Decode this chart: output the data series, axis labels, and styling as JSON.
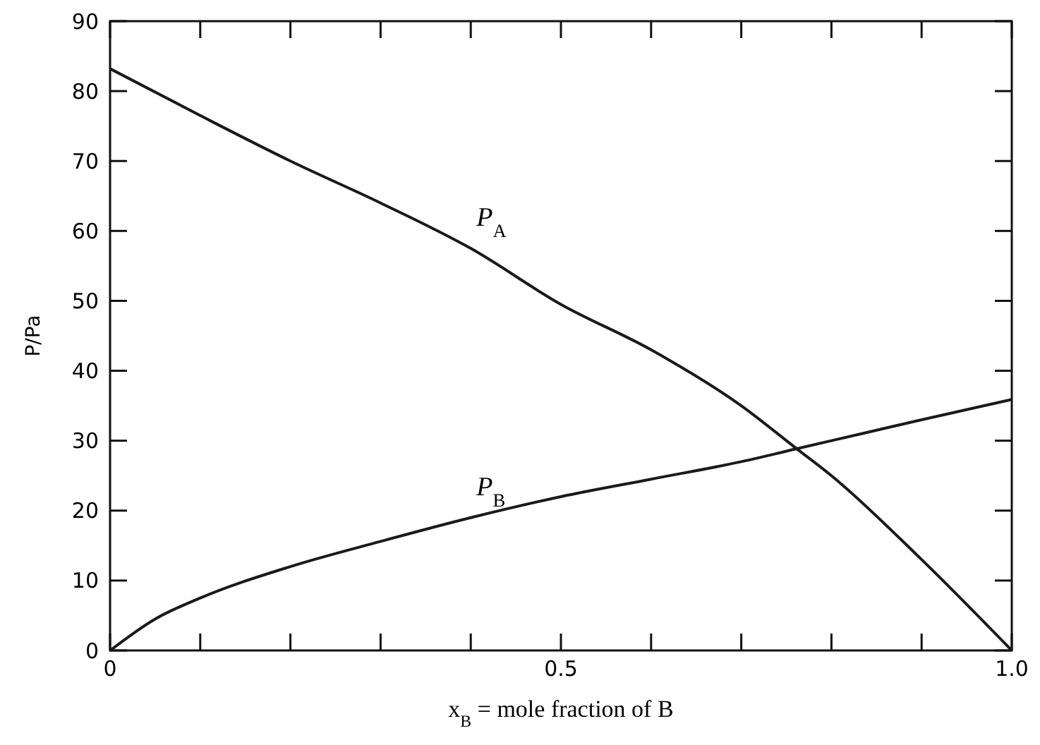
{
  "chart_data": {
    "type": "line",
    "xlabel": "x$_{B}$ = mole fraction of B",
    "ylabel": "P/Pa",
    "xlim": [
      0,
      1.0
    ],
    "ylim": [
      0,
      90
    ],
    "xticks": [
      {
        "value": 0,
        "label": "0"
      },
      {
        "value": 0.1,
        "label": null
      },
      {
        "value": 0.2,
        "label": null
      },
      {
        "value": 0.3,
        "label": null
      },
      {
        "value": 0.4,
        "label": null
      },
      {
        "value": 0.5,
        "label": "0.5"
      },
      {
        "value": 0.6,
        "label": null
      },
      {
        "value": 0.7,
        "label": null
      },
      {
        "value": 0.8,
        "label": null
      },
      {
        "value": 0.9,
        "label": null
      },
      {
        "value": 1.0,
        "label": "1.0"
      }
    ],
    "yticks": [
      0,
      10,
      20,
      30,
      40,
      50,
      60,
      70,
      80,
      90
    ],
    "grid": false,
    "marker": "none",
    "line_style": "solid",
    "series": [
      {
        "name": "P$_{A}$",
        "color": "#1a1a1a",
        "x": [
          0,
          0.1,
          0.2,
          0.3,
          0.4,
          0.5,
          0.6,
          0.7,
          0.76,
          0.8,
          0.9,
          1.0
        ],
        "values": [
          83.2,
          76.5,
          70,
          64,
          57.5,
          49.5,
          43,
          35,
          29,
          25,
          13,
          0
        ]
      },
      {
        "name": "P$_{B}$",
        "color": "#1a1a1a",
        "x": [
          0,
          0.05,
          0.1,
          0.2,
          0.3,
          0.4,
          0.5,
          0.6,
          0.7,
          0.76,
          0.8,
          0.9,
          1.0
        ],
        "values": [
          0,
          4.5,
          7.5,
          12,
          15.6,
          19,
          22,
          24.5,
          27,
          28.8,
          30,
          33,
          35.9
        ]
      }
    ]
  }
}
